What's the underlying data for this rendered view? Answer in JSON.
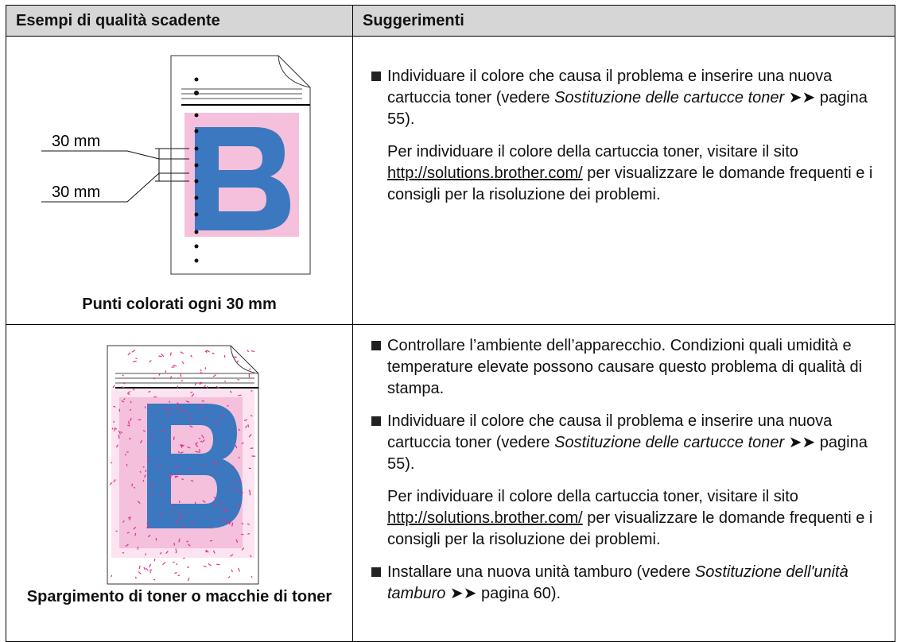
{
  "table": {
    "header": [
      "Esempi di qualità scadente",
      "Suggerimenti"
    ],
    "rows": [
      {
        "caption": "Punti colorati ogni 30 mm",
        "labels": [
          "30 mm",
          "30 mm"
        ],
        "paragraphs": [
          [
            "Individuare il colore che causa il problema e inserire una nuova cartuccia toner (vedere ",
            "Sostituzione delle cartucce toner",
            " ➤➤ pagina 55)."
          ],
          [
            "Per individuare il colore della cartuccia toner, visitare il sito ",
            "http://solutions.brother.com/",
            " per visualizzare le domande frequenti e i consigli per la risoluzione dei problemi."
          ]
        ]
      },
      {
        "caption": "Spargimento di toner o macchie di toner",
        "paragraphs": [
          [
            "Controllare l’ambiente dell’apparecchio. Condizioni quali umidità e temperature elevate possono causare questo problema di qualità di stampa."
          ],
          [
            "Individuare il colore che causa il problema e inserire una nuova cartuccia toner (vedere ",
            "Sostituzione delle cartucce toner",
            " ➤➤ pagina 55)."
          ],
          [
            "Per individuare il colore della cartuccia toner, visitare il sito ",
            "http://solutions.brother.com/",
            " per visualizzare le domande frequenti e i consigli per la risoluzione dei problemi."
          ],
          [
            "Installare una nuova unità tamburo (vedere ",
            "Sostituzione dell'unità tamburo",
            " ➤➤ pagina 60)."
          ]
        ]
      }
    ]
  }
}
